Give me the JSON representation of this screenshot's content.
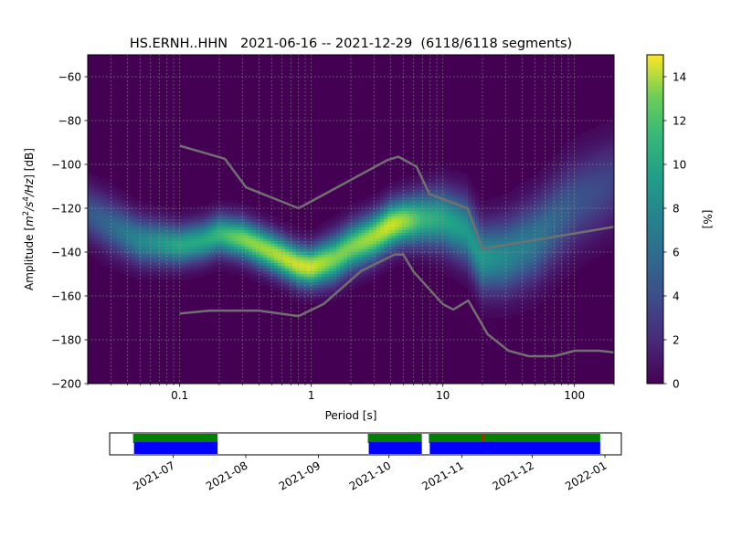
{
  "chart_data": [
    {
      "type": "heatmap",
      "title": "HS.ERNH..HHN   2021-06-16 -- 2021-12-29  (6118/6118 segments)",
      "xlabel": "Period [s]",
      "ylabel_parts": [
        "Amplitude [",
        "m",
        "2",
        "/",
        "s",
        "4",
        "/",
        "Hz",
        "] [dB]"
      ],
      "x_scale": "log",
      "xlim": [
        0.02,
        200
      ],
      "ylim": [
        -200,
        -50
      ],
      "x_ticks": [
        {
          "value": 0.1,
          "label": "0.1"
        },
        {
          "value": 1,
          "label": "1"
        },
        {
          "value": 10,
          "label": "10"
        },
        {
          "value": 100,
          "label": "100"
        }
      ],
      "y_ticks": [
        {
          "value": -60,
          "label": "−60"
        },
        {
          "value": -80,
          "label": "−80"
        },
        {
          "value": -100,
          "label": "−100"
        },
        {
          "value": -120,
          "label": "−120"
        },
        {
          "value": -140,
          "label": "−140"
        },
        {
          "value": -160,
          "label": "−160"
        },
        {
          "value": -180,
          "label": "−180"
        },
        {
          "value": -200,
          "label": "−200"
        }
      ],
      "grid": true,
      "colormap": "viridis",
      "background_color": "#440154",
      "density_band": {
        "period": [
          0.02,
          0.03,
          0.05,
          0.1,
          0.15,
          0.2,
          0.3,
          0.5,
          0.8,
          1,
          1.5,
          2,
          3,
          4,
          5,
          7,
          10,
          15,
          20,
          30,
          50,
          100,
          200
        ],
        "center_db": [
          -122,
          -128,
          -135,
          -137,
          -135,
          -132,
          -134,
          -140,
          -146,
          -147,
          -143,
          -138,
          -133,
          -128,
          -126,
          -125,
          -125,
          -130,
          -143,
          -142,
          -135,
          -118,
          -108
        ],
        "width_db": [
          8,
          8,
          7,
          6,
          6,
          6,
          6,
          6,
          6,
          6,
          7,
          7,
          7,
          7,
          7,
          8,
          9,
          10,
          10,
          11,
          12,
          13,
          13
        ],
        "peak_percent": [
          4,
          5,
          7,
          9,
          9,
          10,
          12,
          13,
          14,
          14,
          12,
          12,
          13,
          14,
          13,
          10,
          9,
          8,
          8,
          7,
          6,
          4,
          3
        ]
      },
      "noise_models": [
        {
          "name": "NHNM",
          "color": "#707070",
          "x": [
            0.1,
            0.22,
            0.32,
            0.8,
            3.8,
            4.6,
            6.3,
            7.9,
            15.4,
            20,
            200
          ],
          "y": [
            -91.5,
            -97.4,
            -110.5,
            -120,
            -98,
            -96.5,
            -101,
            -113.5,
            -120,
            -138.5,
            -128.5
          ]
        },
        {
          "name": "NLNM",
          "color": "#707070",
          "x": [
            0.1,
            0.17,
            0.4,
            0.8,
            1.24,
            2.4,
            4.3,
            5,
            6,
            10,
            12,
            15.6,
            21.9,
            31.6,
            45,
            70,
            101,
            154,
            200
          ],
          "y": [
            -168,
            -166.7,
            -166.7,
            -169.2,
            -163.7,
            -148.6,
            -141.1,
            -141.1,
            -149,
            -163.8,
            -166.2,
            -162.1,
            -177.5,
            -185,
            -187.5,
            -187.5,
            -185,
            -185,
            -185.8
          ]
        }
      ]
    },
    {
      "type": "bar",
      "name": "data-coverage",
      "x_ticks": [
        "2021-07",
        "2021-08",
        "2021-09",
        "2021-10",
        "2021-11",
        "2021-12",
        "2022-01"
      ],
      "xlim": [
        "2021-06-04",
        "2022-01-08"
      ],
      "coverage_spans": [
        [
          "2021-06-14",
          "2021-07-20"
        ],
        [
          "2021-09-22",
          "2021-10-15"
        ],
        [
          "2021-10-18",
          "2021-12-30"
        ]
      ],
      "gap_markers": [
        "2021-11-10"
      ],
      "colors": {
        "processed": "#0000ff",
        "available": "#008000",
        "gap": "#ff0000"
      }
    },
    {
      "type": "colorbar",
      "label": "[%]",
      "range": [
        0,
        15
      ],
      "ticks": [
        {
          "value": 0,
          "label": "0"
        },
        {
          "value": 2,
          "label": "2"
        },
        {
          "value": 4,
          "label": "4"
        },
        {
          "value": 6,
          "label": "6"
        },
        {
          "value": 8,
          "label": "8"
        },
        {
          "value": 10,
          "label": "10"
        },
        {
          "value": 12,
          "label": "12"
        },
        {
          "value": 14,
          "label": "14"
        }
      ],
      "colormap": "viridis"
    }
  ]
}
